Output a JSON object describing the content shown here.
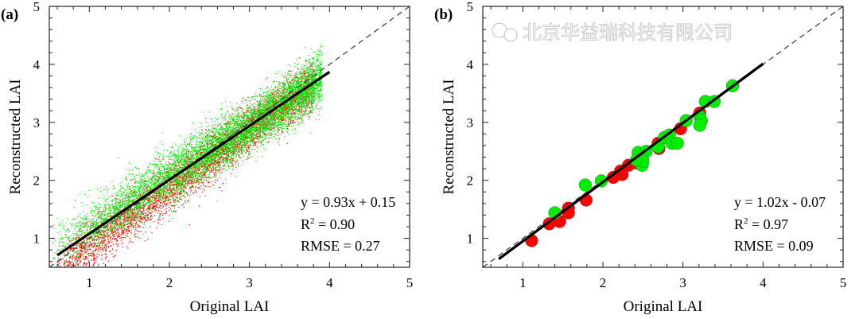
{
  "watermark": "北京华益瑞科技有限公司",
  "colors": {
    "red": "#ff0000",
    "green": "#00ee00",
    "line": "#000000"
  },
  "chart_data": [
    {
      "panel_label": "(a)",
      "type": "scatter",
      "xlabel": "Original LAI",
      "ylabel": "Reconstructed LAI",
      "xlim": [
        0.5,
        5
      ],
      "ylim": [
        0.5,
        5
      ],
      "xticks": [
        "1",
        "2",
        "3",
        "4",
        "5"
      ],
      "yticks": [
        "1",
        "2",
        "3",
        "4",
        "5"
      ],
      "grid": false,
      "one_to_one_line": true,
      "fit": {
        "slope": 0.93,
        "intercept": 0.15,
        "x_range": [
          0.6,
          4.0
        ]
      },
      "stats": {
        "equation": "y = 0.93x + 0.15",
        "r2_label": "R",
        "r2_sup": "2",
        "r2_value": " = 0.90",
        "rmse": "RMSE = 0.27"
      },
      "series": [
        {
          "color": "#ff0000"
        },
        {
          "color": "#00ee00"
        }
      ]
    },
    {
      "panel_label": "(b)",
      "type": "scatter",
      "xlabel": "Original LAI",
      "ylabel": "Reconstructed LAI",
      "xlim": [
        0.5,
        5
      ],
      "ylim": [
        0.5,
        5
      ],
      "xticks": [
        "1",
        "2",
        "3",
        "4",
        "5"
      ],
      "yticks": [
        "1",
        "2",
        "3",
        "4",
        "5"
      ],
      "grid": false,
      "one_to_one_line": true,
      "fit": {
        "slope": 1.02,
        "intercept": -0.07,
        "x_range": [
          0.7,
          4.0
        ]
      },
      "stats": {
        "equation": "y = 1.02x - 0.07",
        "r2_label": "R",
        "r2_sup": "2",
        "r2_value": " = 0.97",
        "rmse": "RMSE = 0.09"
      },
      "series": [
        {
          "color": "#ff0000",
          "x": [
            1.11,
            1.33,
            1.46,
            1.57,
            1.57,
            1.79,
            2.13,
            2.24,
            2.22,
            2.32,
            2.42,
            2.7,
            2.69,
            2.97,
            3.21
          ],
          "y": [
            0.96,
            1.25,
            1.29,
            1.52,
            1.44,
            1.66,
            2.05,
            2.1,
            2.16,
            2.26,
            2.3,
            2.55,
            2.64,
            2.89,
            3.16
          ]
        },
        {
          "color": "#00ee00",
          "x": [
            1.4,
            1.78,
            1.98,
            2.44,
            2.54,
            2.49,
            2.5,
            2.42,
            2.69,
            2.77,
            2.83,
            2.86,
            2.93,
            3.04,
            3.21,
            3.23,
            3.21,
            3.28,
            3.39,
            3.62
          ],
          "y": [
            1.44,
            1.92,
            1.99,
            2.48,
            2.5,
            2.26,
            2.33,
            2.35,
            2.58,
            2.74,
            2.78,
            2.64,
            2.64,
            3.03,
            3.1,
            3.03,
            2.95,
            3.36,
            3.36,
            3.63
          ]
        }
      ]
    }
  ]
}
